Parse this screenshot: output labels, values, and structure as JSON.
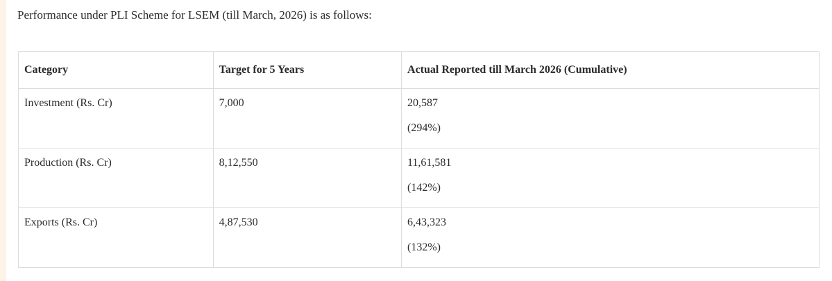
{
  "intro_text": "Performance under PLI Scheme for LSEM (till March, 2026) is as follows:",
  "table": {
    "headers": [
      "Category",
      "Target for 5 Years",
      "Actual Reported till March 2026 (Cumulative)"
    ],
    "rows": [
      {
        "category": "Investment (Rs. Cr)",
        "target": "7,000",
        "actual": "20,587",
        "percent": "(294%)"
      },
      {
        "category": "Production (Rs. Cr)",
        "target": "8,12,550",
        "actual": "11,61,581",
        "percent": "(142%)"
      },
      {
        "category": "Exports (Rs. Cr)",
        "target": "4,87,530",
        "actual": "6,43,323",
        "percent": "(132%)"
      }
    ]
  }
}
